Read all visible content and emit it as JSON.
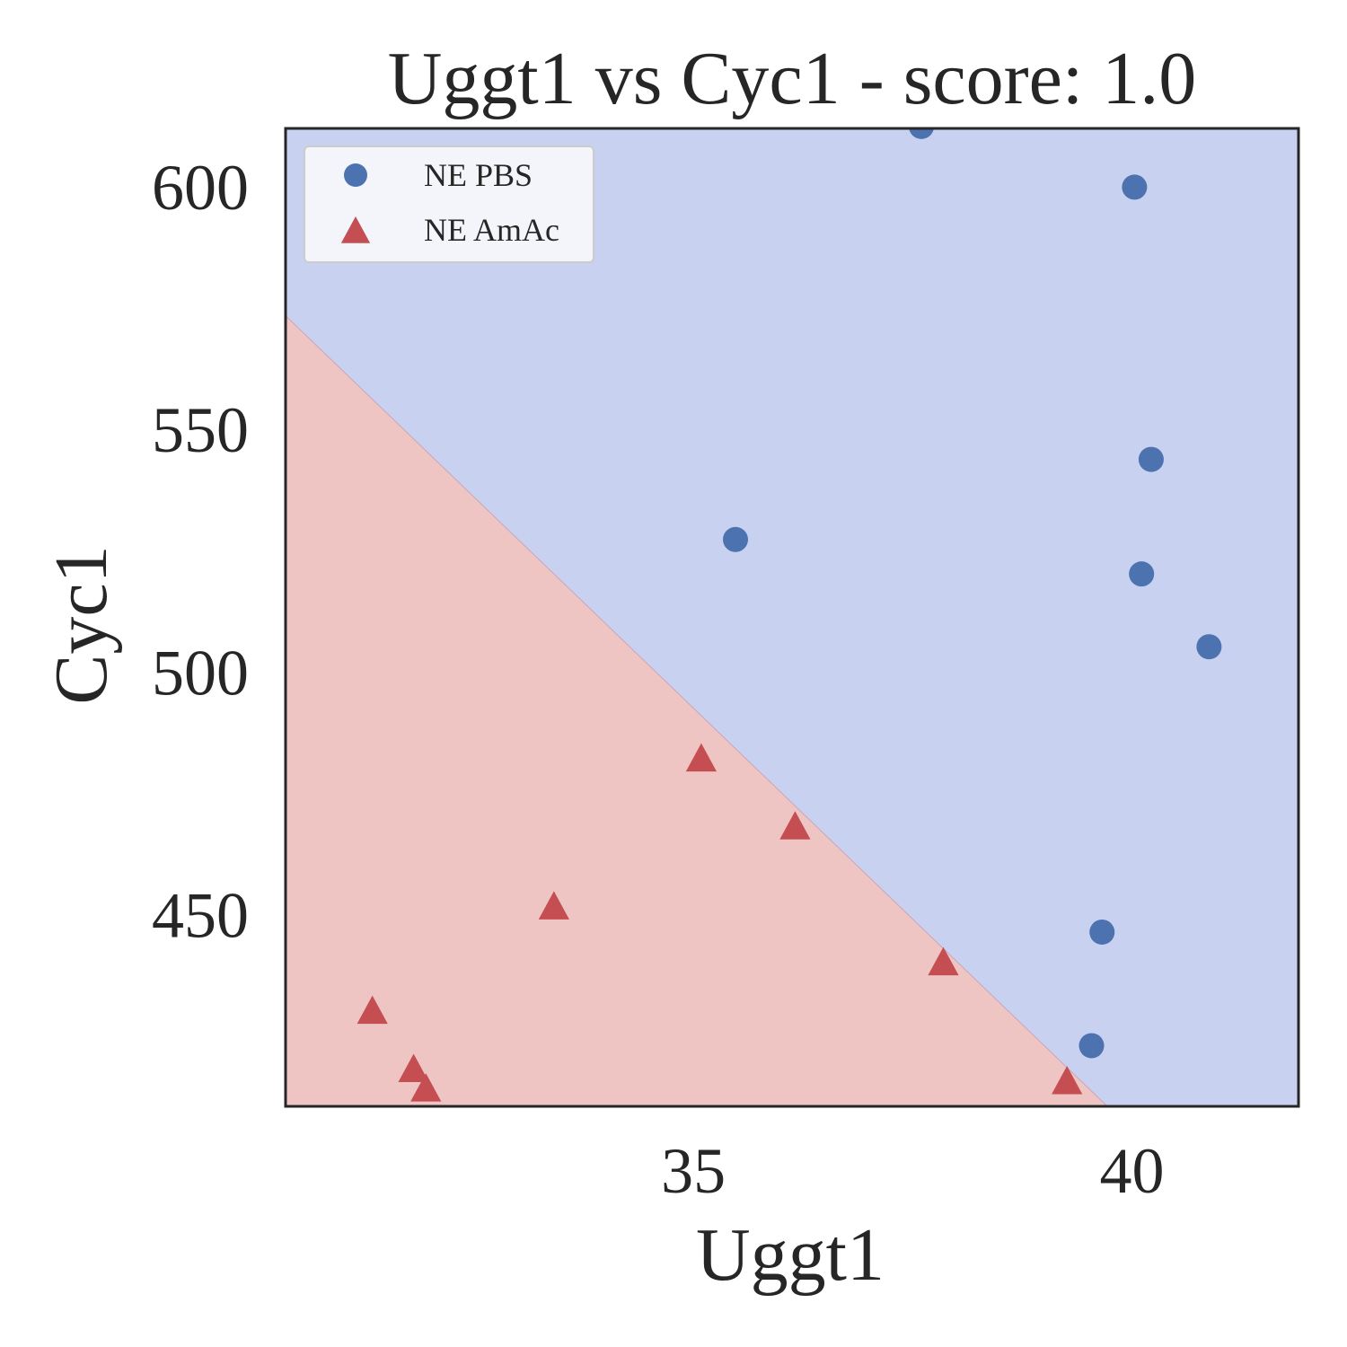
{
  "chart_data": {
    "type": "scatter",
    "title": "Uggt1 vs Cyc1 - score: 1.0",
    "xlabel": "Uggt1",
    "ylabel": "Cyc1",
    "xlim": [
      30.35,
      41.9
    ],
    "ylim": [
      410.5,
      612
    ],
    "xticks": [
      35,
      40
    ],
    "yticks": [
      450,
      500,
      550,
      600
    ],
    "grid": false,
    "legend_position": "top-left",
    "decision_boundary": {
      "points": [
        [
          30.35,
          573.4
        ],
        [
          39.72,
          410.5
        ]
      ],
      "regions": [
        {
          "class": "NE PBS",
          "side": "above",
          "color": "#c9d1f1"
        },
        {
          "class": "NE AmAc",
          "side": "below",
          "color": "#efc5c4"
        }
      ]
    },
    "series": [
      {
        "name": "NE PBS",
        "marker": "circle",
        "color": "#4c72b0",
        "points": [
          [
            37.6,
            612.4
          ],
          [
            40.03,
            599.9
          ],
          [
            40.22,
            543.8
          ],
          [
            35.48,
            527.3
          ],
          [
            40.11,
            520.2
          ],
          [
            40.88,
            505.2
          ],
          [
            39.66,
            446.4
          ],
          [
            39.54,
            423.0
          ]
        ]
      },
      {
        "name": "NE AmAc",
        "marker": "triangle",
        "color": "#c44e52",
        "points": [
          [
            35.09,
            482.0
          ],
          [
            36.16,
            468.0
          ],
          [
            33.41,
            451.5
          ],
          [
            37.85,
            440.0
          ],
          [
            31.34,
            430.0
          ],
          [
            31.81,
            418.0
          ],
          [
            31.95,
            414.0
          ],
          [
            39.26,
            415.5
          ]
        ]
      }
    ]
  }
}
